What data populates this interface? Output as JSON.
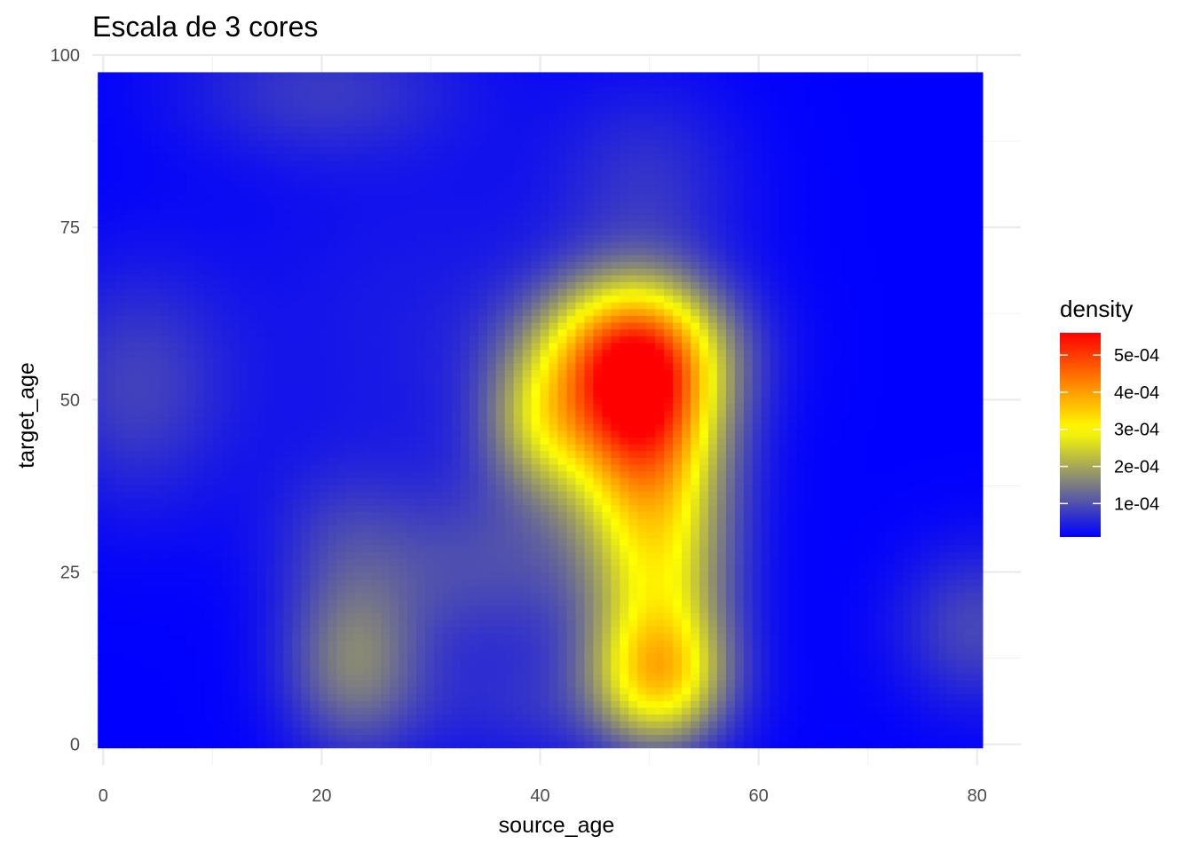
{
  "chart_data": {
    "type": "heatmap",
    "title": "Escala de 3 cores",
    "xlabel": "source_age",
    "ylabel": "target_age",
    "xlim": [
      -1,
      84
    ],
    "ylim": [
      -3,
      100
    ],
    "x_ticks": [
      0,
      20,
      40,
      60,
      80
    ],
    "y_ticks": [
      0,
      25,
      50,
      75,
      100
    ],
    "x_tick_labels": [
      "0",
      "20",
      "40",
      "60",
      "80"
    ],
    "y_tick_labels": [
      "0",
      "25",
      "50",
      "75",
      "100"
    ],
    "data_extent": {
      "x": [
        -0.5,
        80.5
      ],
      "y": [
        -0.5,
        97.5
      ]
    },
    "grid": true,
    "legend": {
      "title": "density",
      "position": "right",
      "breaks": [
        0.0001,
        0.0002,
        0.0003,
        0.0004,
        0.0005
      ],
      "labels": [
        "1e-04",
        "2e-04",
        "3e-04",
        "4e-04",
        "5e-04"
      ],
      "min": 1e-05,
      "max": 0.00056
    },
    "color_scale": {
      "low": "#0000ff",
      "mid": "#ffff00",
      "high": "#ff0000",
      "midpoint": 0.0003
    },
    "density_peaks": [
      {
        "x": 49,
        "y": 50,
        "density": 0.00056
      },
      {
        "x": 51,
        "y": 10,
        "density": 0.00038
      },
      {
        "x": 23,
        "y": 12,
        "density": 0.00022
      },
      {
        "x": 3,
        "y": 52,
        "density": 0.00011
      },
      {
        "x": 20,
        "y": 95,
        "density": 8e-05
      },
      {
        "x": 80,
        "y": 17,
        "density": 0.00012
      }
    ]
  }
}
